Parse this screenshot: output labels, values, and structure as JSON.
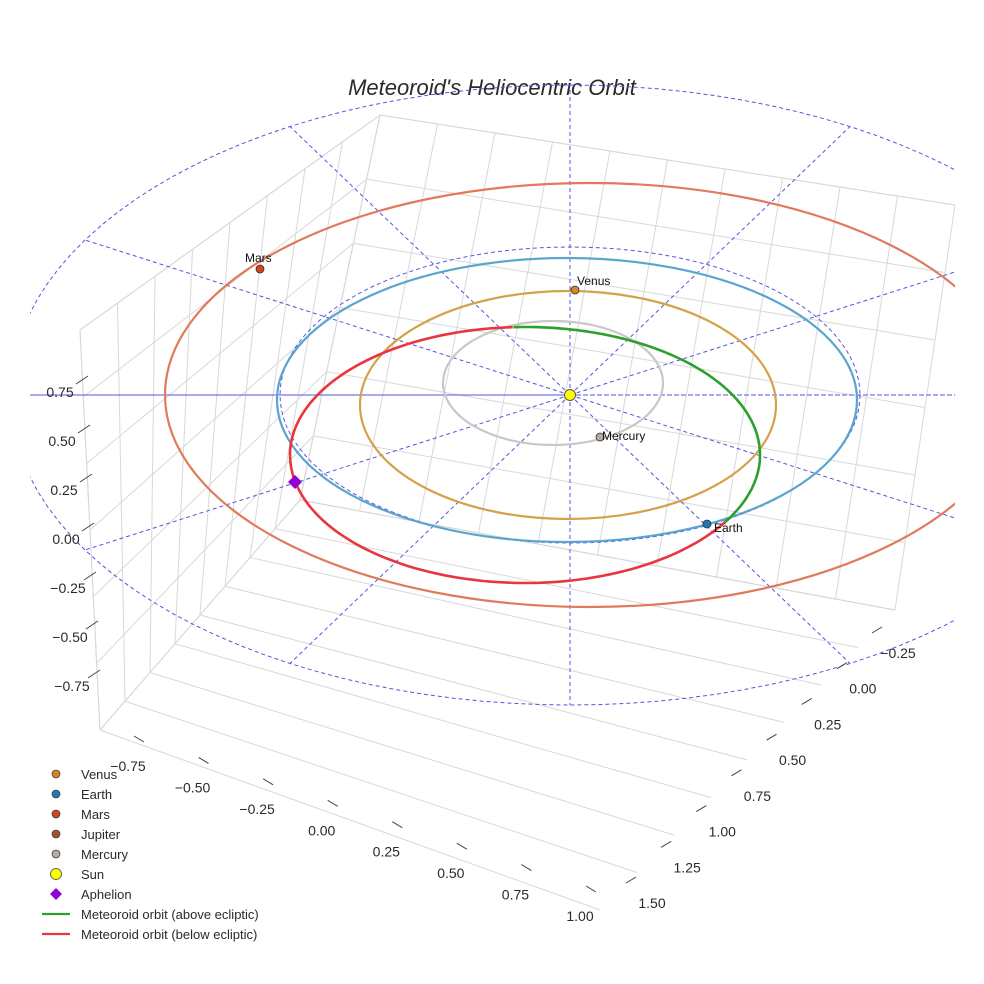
{
  "chart_data": {
    "type": "line3d",
    "title": "Meteoroid's Heliocentric Orbit",
    "x_ticks": [
      "−0.75",
      "−0.50",
      "−0.25",
      "0.00",
      "0.25",
      "0.50",
      "0.75",
      "1.00"
    ],
    "y_ticks": [
      "−0.25",
      "0.00",
      "0.25",
      "0.50",
      "0.75",
      "1.00",
      "1.25",
      "1.50"
    ],
    "z_ticks": [
      "0.75",
      "0.50",
      "0.25",
      "0.00",
      "−0.25",
      "−0.50",
      "−0.75"
    ],
    "planets": [
      {
        "name": "Venus",
        "label": "Venus",
        "orbit_color": "#d4a24a",
        "marker_color": "#d4862a"
      },
      {
        "name": "Earth",
        "label": "Earth",
        "orbit_color": "#5aa5d0",
        "marker_color": "#1f77b4"
      },
      {
        "name": "Mars",
        "label": "Mars",
        "orbit_color": "#e07a5a",
        "marker_color": "#d2451e"
      },
      {
        "name": "Mercury",
        "label": "Mercury",
        "orbit_color": "#c8c8c8",
        "marker_color": "#b8aaa0"
      }
    ],
    "legend": [
      {
        "label": "Venus",
        "kind": "circle",
        "color": "#d4862a"
      },
      {
        "label": "Earth",
        "kind": "circle",
        "color": "#1f77b4"
      },
      {
        "label": "Mars",
        "kind": "circle",
        "color": "#d2451e"
      },
      {
        "label": "Jupiter",
        "kind": "circle",
        "color": "#a0522d"
      },
      {
        "label": "Mercury",
        "kind": "circle",
        "color": "#b8aaa0"
      },
      {
        "label": "Sun",
        "kind": "sun",
        "color": "#ffff00"
      },
      {
        "label": "Aphelion",
        "kind": "diamond",
        "color": "#9400d3"
      },
      {
        "label": "Meteoroid orbit (above ecliptic)",
        "kind": "line",
        "color": "#2ca02c"
      },
      {
        "label": "Meteoroid orbit (below ecliptic)",
        "kind": "line",
        "color": "#e8363c"
      }
    ],
    "ecliptic_grid_color": "#5555dd"
  }
}
